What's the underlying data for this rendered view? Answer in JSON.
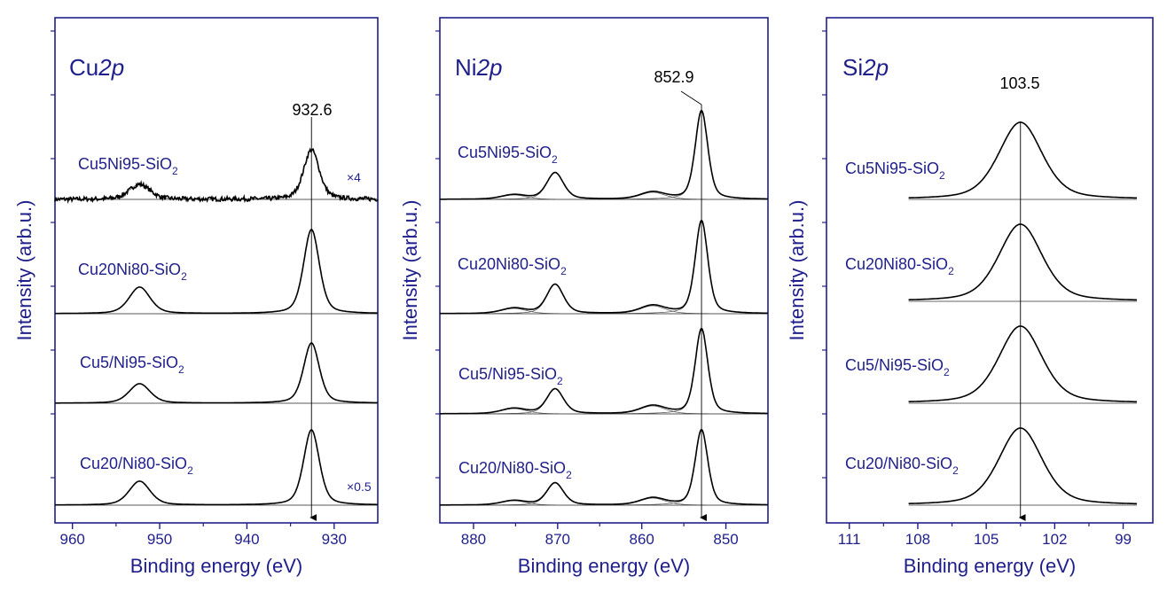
{
  "chart_data": [
    {
      "type": "line",
      "title": "Cu",
      "title_suffix": "2p",
      "xlabel": "Binding energy (eV)",
      "ylabel": "Intensity (arb.u.)",
      "xlim": [
        962,
        925
      ],
      "xticks": [
        960,
        950,
        940,
        930
      ],
      "annotation": {
        "text": "932.6",
        "x": 932.6
      },
      "series": [
        {
          "name": "Cu5Ni95-SiO2",
          "label_main": "Cu5Ni95-SiO",
          "label_sub": "2",
          "multiplier": "×4",
          "peaks": [
            {
              "center": 932.6,
              "height": 56,
              "width": 0.9
            },
            {
              "center": 952.3,
              "height": 17,
              "width": 1.2
            }
          ],
          "noise": 2.5
        },
        {
          "name": "Cu20Ni80-SiO2",
          "label_main": "Cu20Ni80-SiO",
          "label_sub": "2",
          "multiplier": "",
          "peaks": [
            {
              "center": 932.6,
              "height": 95,
              "width": 0.9
            },
            {
              "center": 952.3,
              "height": 30,
              "width": 1.2
            }
          ],
          "noise": 0
        },
        {
          "name": "Cu5/Ni95-SiO2",
          "label_main": "Cu5/Ni95-SiO",
          "label_sub": "2",
          "multiplier": "",
          "peaks": [
            {
              "center": 932.6,
              "height": 68,
              "width": 0.9
            },
            {
              "center": 952.3,
              "height": 22,
              "width": 1.2
            }
          ],
          "noise": 0
        },
        {
          "name": "Cu20/Ni80-SiO2",
          "label_main": "Cu20/Ni80-SiO",
          "label_sub": "2",
          "multiplier": "×0.5",
          "peaks": [
            {
              "center": 932.6,
              "height": 85,
              "width": 0.9
            },
            {
              "center": 952.3,
              "height": 27,
              "width": 1.2
            }
          ],
          "noise": 0
        }
      ]
    },
    {
      "type": "line",
      "title": "Ni",
      "title_suffix": "2p",
      "xlabel": "Binding energy (eV)",
      "ylabel": "Intensity (arb.u.)",
      "xlim": [
        884,
        845
      ],
      "xticks": [
        880,
        870,
        860,
        850
      ],
      "annotation": {
        "text": "852.9",
        "x": 852.9
      },
      "series": [
        {
          "name": "Cu5Ni95-SiO2",
          "label_main": "Cu5Ni95-SiO",
          "label_sub": "2",
          "peaks": [
            {
              "center": 852.9,
              "height": 100,
              "width": 0.75
            },
            {
              "center": 858.7,
              "height": 8,
              "width": 1.5
            },
            {
              "center": 870.3,
              "height": 30,
              "width": 1.0
            },
            {
              "center": 875.2,
              "height": 5,
              "width": 1.5
            }
          ]
        },
        {
          "name": "Cu20Ni80-SiO2",
          "label_main": "Cu20Ni80-SiO",
          "label_sub": "2",
          "peaks": [
            {
              "center": 852.9,
              "height": 105,
              "width": 0.75
            },
            {
              "center": 858.7,
              "height": 9,
              "width": 1.5
            },
            {
              "center": 870.3,
              "height": 33,
              "width": 1.0
            },
            {
              "center": 875.2,
              "height": 6,
              "width": 1.5
            }
          ]
        },
        {
          "name": "Cu5/Ni95-SiO2",
          "label_main": "Cu5/Ni95-SiO",
          "label_sub": "2",
          "peaks": [
            {
              "center": 852.9,
              "height": 96,
              "width": 0.75
            },
            {
              "center": 858.7,
              "height": 9,
              "width": 1.5
            },
            {
              "center": 870.3,
              "height": 28,
              "width": 1.0
            },
            {
              "center": 875.2,
              "height": 6,
              "width": 1.5
            }
          ]
        },
        {
          "name": "Cu20/Ni80-SiO2",
          "label_main": "Cu20/Ni80-SiO",
          "label_sub": "2",
          "peaks": [
            {
              "center": 852.9,
              "height": 85,
              "width": 0.75
            },
            {
              "center": 858.7,
              "height": 8,
              "width": 1.5
            },
            {
              "center": 870.3,
              "height": 25,
              "width": 1.0
            },
            {
              "center": 875.2,
              "height": 5,
              "width": 1.5
            }
          ]
        }
      ]
    },
    {
      "type": "line",
      "title": "Si",
      "title_suffix": "2p",
      "xlabel": "Binding energy (eV)",
      "ylabel": "Intensity (arb.u.)",
      "xlim": [
        112,
        97.7
      ],
      "xticks": [
        111,
        108,
        105,
        102,
        99
      ],
      "xrange_data": [
        108.4,
        98.4
      ],
      "annotation": {
        "text": "103.5",
        "x": 103.5
      },
      "series": [
        {
          "name": "Cu5Ni95-SiO2",
          "label_main": "Cu5Ni95-SiO",
          "label_sub": "2",
          "peaks": [
            {
              "center": 103.5,
              "height": 87,
              "width": 0.95
            }
          ]
        },
        {
          "name": "Cu20Ni80-SiO2",
          "label_main": "Cu20Ni80-SiO",
          "label_sub": "2",
          "peaks": [
            {
              "center": 103.5,
              "height": 87,
              "width": 0.95
            }
          ]
        },
        {
          "name": "Cu5/Ni95-SiO2",
          "label_main": "Cu5/Ni95-SiO",
          "label_sub": "2",
          "peaks": [
            {
              "center": 103.5,
              "height": 87,
              "width": 0.95
            }
          ]
        },
        {
          "name": "Cu20/Ni80-SiO2",
          "label_main": "Cu20/Ni80-SiO",
          "label_sub": "2",
          "peaks": [
            {
              "center": 103.5,
              "height": 87,
              "width": 0.95
            }
          ]
        }
      ]
    }
  ],
  "colors": {
    "axis": "#1f1f8c",
    "text": "#1f1f8c",
    "curve": "#000000",
    "annotation": "#000000"
  }
}
